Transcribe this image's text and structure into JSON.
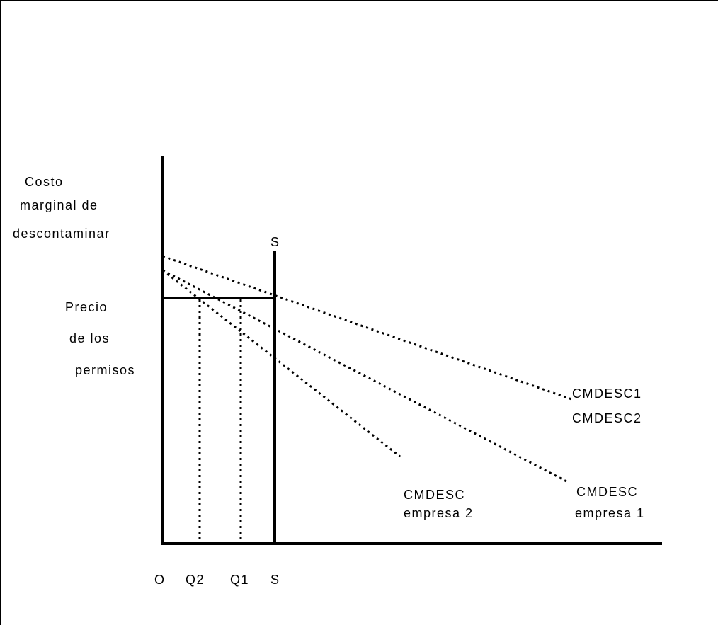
{
  "diagram": {
    "y_label_lines": [
      "Costo",
      "marginal de",
      "descontaminar"
    ],
    "price_label_lines": [
      "Precio",
      "de los",
      "permisos"
    ],
    "supply_label": "S",
    "x_ticks": [
      "O",
      "Q2",
      "Q1",
      "S"
    ],
    "legend_combined": [
      "CMDESC1",
      "CMDESC2"
    ],
    "curve_firm2_label": [
      "CMDESC",
      "empresa 2"
    ],
    "curve_firm1_label": [
      "CMDESC",
      "empresa 1"
    ],
    "colors": {
      "line": "#000000",
      "background": "#ffffff"
    }
  }
}
